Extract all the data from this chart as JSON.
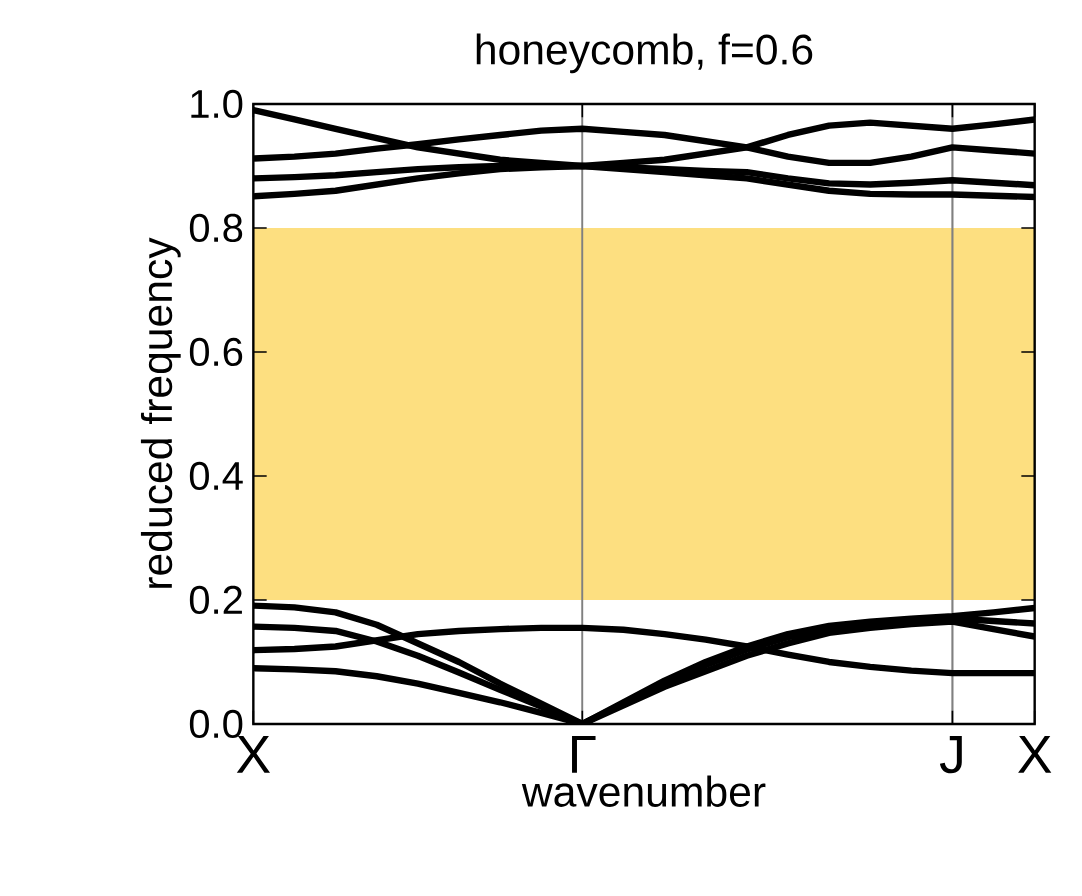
{
  "chart_data": {
    "type": "line",
    "title": "honeycomb, f=0.6",
    "xlabel": "wavenumber",
    "ylabel": "reduced frequency",
    "categories": [
      "X",
      null,
      null,
      null,
      null,
      null,
      null,
      null,
      "Γ",
      null,
      null,
      null,
      null,
      null,
      null,
      null,
      null,
      "J",
      null,
      "X"
    ],
    "ylim": [
      0,
      1
    ],
    "yticks": [
      {
        "value": 0,
        "label": "0.0"
      },
      {
        "value": 0.2,
        "label": "0.2"
      },
      {
        "value": 0.4,
        "label": "0.4"
      },
      {
        "value": 0.6,
        "label": "0.6"
      },
      {
        "value": 0.8,
        "label": "0.8"
      },
      {
        "value": 1,
        "label": "1.0"
      }
    ],
    "bands": [
      {
        "axis": "y",
        "from": 0.2,
        "to": 0.8,
        "color": "#fddf80"
      }
    ],
    "ref_lines": [
      {
        "axis": "x",
        "value": "Γ",
        "color": "#808080"
      },
      {
        "axis": "x",
        "value": "J",
        "color": "#808080"
      }
    ],
    "series": [
      {
        "color": "#000000",
        "values": [
          0.99,
          0.975,
          0.96,
          0.945,
          0.93,
          0.92,
          0.91,
          0.905,
          0.9,
          0.905,
          0.91,
          0.92,
          0.93,
          0.95,
          0.965,
          0.97,
          0.965,
          0.96,
          0.967,
          0.975
        ]
      },
      {
        "color": "#000000",
        "values": [
          0.912,
          0.915,
          0.92,
          0.928,
          0.935,
          0.943,
          0.95,
          0.957,
          0.96,
          0.955,
          0.95,
          0.94,
          0.93,
          0.915,
          0.905,
          0.905,
          0.915,
          0.93,
          0.925,
          0.92
        ]
      },
      {
        "color": "#000000",
        "values": [
          0.88,
          0.882,
          0.885,
          0.89,
          0.895,
          0.898,
          0.9,
          0.9,
          0.9,
          0.898,
          0.895,
          0.892,
          0.89,
          0.88,
          0.872,
          0.87,
          0.873,
          0.877,
          0.873,
          0.869
        ]
      },
      {
        "color": "#000000",
        "values": [
          0.851,
          0.855,
          0.86,
          0.87,
          0.88,
          0.888,
          0.895,
          0.898,
          0.9,
          0.895,
          0.89,
          0.885,
          0.88,
          0.87,
          0.86,
          0.855,
          0.854,
          0.854,
          0.852,
          0.85
        ]
      },
      {
        "color": "#000000",
        "values": [
          0.191,
          0.188,
          0.18,
          0.16,
          0.13,
          0.1,
          0.065,
          0.033,
          0,
          0.035,
          0.07,
          0.1,
          0.125,
          0.145,
          0.158,
          0.165,
          0.17,
          0.174,
          0.18,
          0.187
        ]
      },
      {
        "color": "#000000",
        "values": [
          0.157,
          0.155,
          0.15,
          0.133,
          0.11,
          0.083,
          0.055,
          0.028,
          0,
          0.033,
          0.065,
          0.095,
          0.12,
          0.14,
          0.152,
          0.16,
          0.166,
          0.17,
          0.166,
          0.162
        ]
      },
      {
        "color": "#000000",
        "values": [
          0.119,
          0.121,
          0.125,
          0.135,
          0.145,
          0.15,
          0.153,
          0.155,
          0.155,
          0.152,
          0.145,
          0.136,
          0.125,
          0.112,
          0.1,
          0.092,
          0.086,
          0.082,
          0.082,
          0.082
        ]
      },
      {
        "color": "#000000",
        "values": [
          0.09,
          0.088,
          0.085,
          0.077,
          0.065,
          0.05,
          0.035,
          0.018,
          0,
          0.03,
          0.06,
          0.085,
          0.11,
          0.13,
          0.147,
          0.155,
          0.161,
          0.165,
          0.153,
          0.141
        ]
      }
    ],
    "grid": false,
    "marker": "none",
    "line_style": "solid"
  }
}
